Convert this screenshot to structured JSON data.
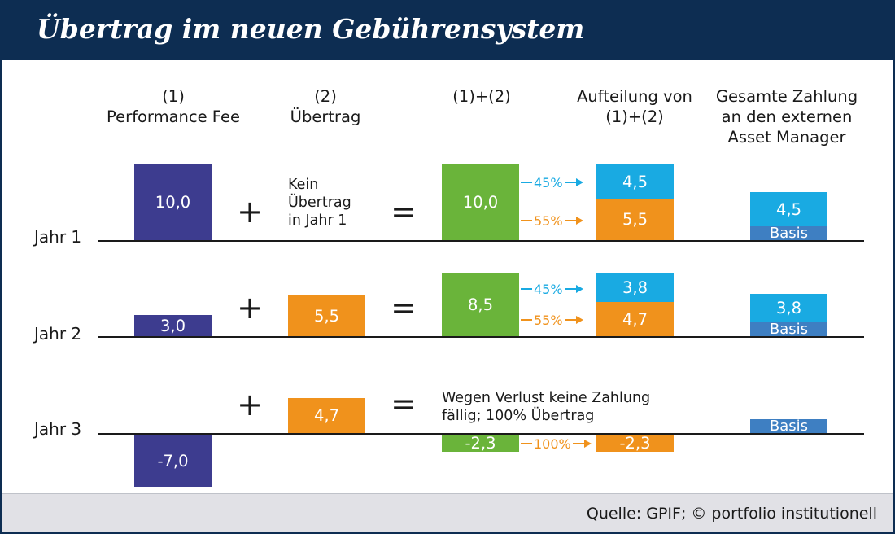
{
  "title": "Übertrag im neuen Gebührensystem",
  "source": "Quelle: GPIF; © portfolio institutionell",
  "columns": {
    "performance_fee": [
      "(1)",
      "Performance Fee"
    ],
    "uebertrag": [
      "(2)",
      "Übertrag"
    ],
    "sum": [
      "(1)+(2)"
    ],
    "aufteilung": [
      "Aufteilung von",
      "(1)+(2)"
    ],
    "gesamt": [
      "Gesamte Zahlung",
      "an den externen",
      "Asset Manager"
    ]
  },
  "operators": {
    "plus": "+",
    "equals": "="
  },
  "years": [
    {
      "label": "Jahr 1",
      "performance_fee": "10,0",
      "uebertrag_note": [
        "Kein",
        "Übertrag",
        "in Jahr 1"
      ],
      "sum": "10,0",
      "split": [
        {
          "share": "45%",
          "value": "4,5"
        },
        {
          "share": "55%",
          "value": "5,5"
        }
      ],
      "payment": {
        "value": "4,5",
        "base": "Basis"
      }
    },
    {
      "label": "Jahr 2",
      "performance_fee": "3,0",
      "uebertrag": "5,5",
      "sum": "8,5",
      "split": [
        {
          "share": "45%",
          "value": "3,8"
        },
        {
          "share": "55%",
          "value": "4,7"
        }
      ],
      "payment": {
        "value": "3,8",
        "base": "Basis"
      }
    },
    {
      "label": "Jahr 3",
      "performance_fee": "-7,0",
      "uebertrag": "4,7",
      "note": [
        "Wegen Verlust keine Zahlung",
        "fällig; 100% Übertrag"
      ],
      "sum": "-2,3",
      "split": [
        {
          "share": "100%",
          "value": "-2,3"
        }
      ],
      "payment": {
        "base": "Basis"
      }
    }
  ],
  "colors": {
    "header": "#0d2d52",
    "performance_fee": "#3d3c8f",
    "uebertrag": "#f0921c",
    "sum": "#6ab43a",
    "share_45": "#19aae2",
    "share_55": "#f0921c",
    "base": "#3e7fc2"
  }
}
